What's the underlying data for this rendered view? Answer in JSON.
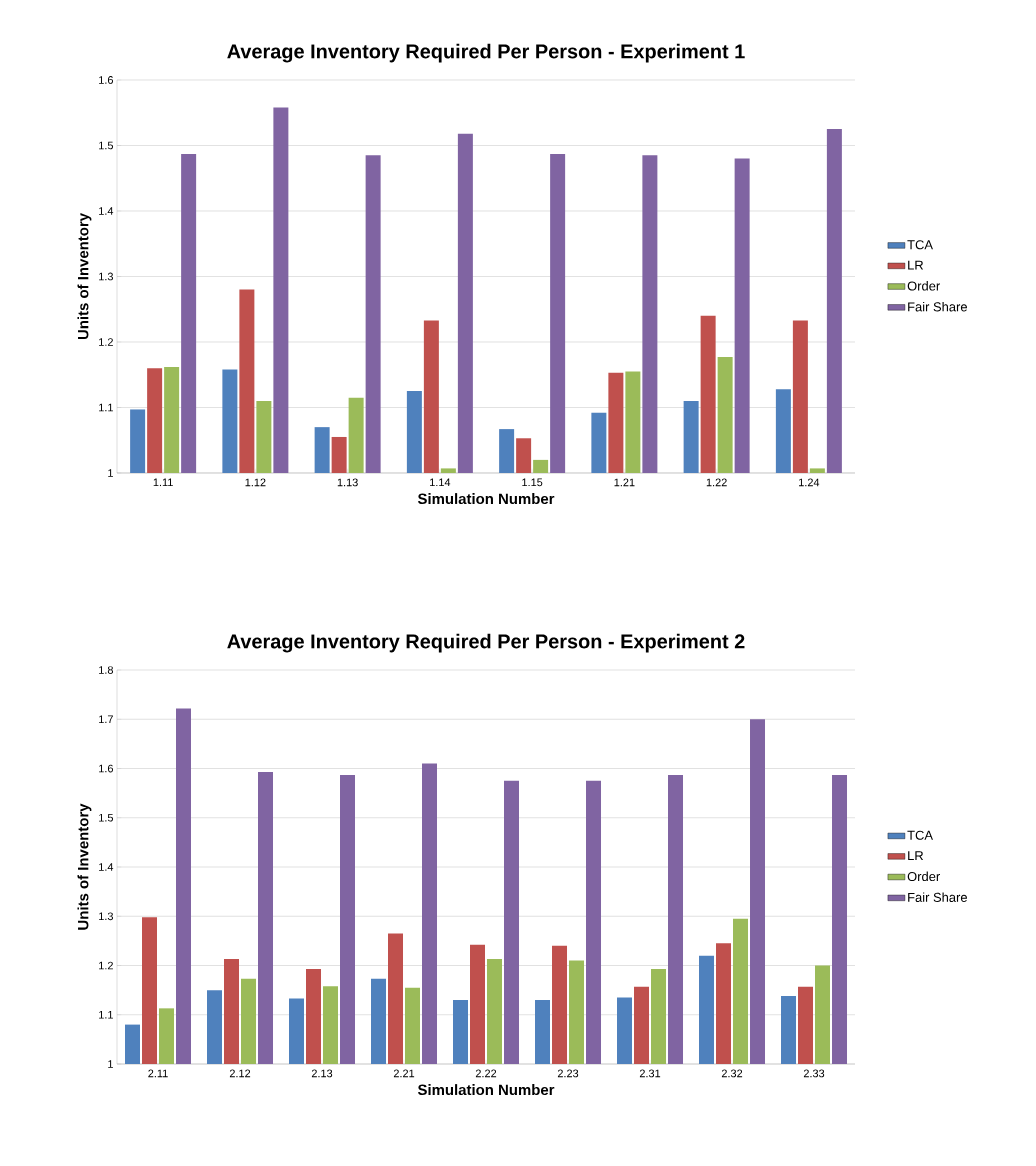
{
  "chart_data": [
    {
      "type": "bar",
      "title": "Average Inventory Required Per Person - Experiment 1",
      "xlabel": "Simulation Number",
      "ylabel": "Units of Inventory",
      "categories": [
        "1.11",
        "1.12",
        "1.13",
        "1.14",
        "1.15",
        "1.21",
        "1.22",
        "1.24"
      ],
      "series": [
        {
          "name": "TCA",
          "color": "#4f81bd",
          "values": [
            1.097,
            1.158,
            1.07,
            1.125,
            1.067,
            1.092,
            1.11,
            1.128
          ]
        },
        {
          "name": "LR",
          "color": "#c0504d",
          "values": [
            1.16,
            1.28,
            1.055,
            1.233,
            1.053,
            1.153,
            1.24,
            1.233
          ]
        },
        {
          "name": "Order",
          "color": "#9bbb59",
          "values": [
            1.162,
            1.11,
            1.115,
            1.007,
            1.02,
            1.155,
            1.177,
            1.007
          ]
        },
        {
          "name": "Fair Share",
          "color": "#8064a2",
          "values": [
            1.487,
            1.558,
            1.485,
            1.518,
            1.487,
            1.485,
            1.48,
            1.525
          ]
        }
      ],
      "ylim": [
        1,
        1.6
      ],
      "yticks": [
        1,
        1.1,
        1.2,
        1.3,
        1.4,
        1.5,
        1.6
      ],
      "grid": "y",
      "legend": "right"
    },
    {
      "type": "bar",
      "title": "Average Inventory Required Per Person - Experiment 2",
      "xlabel": "Simulation Number",
      "ylabel": "Units of Inventory",
      "categories": [
        "2.11",
        "2.12",
        "2.13",
        "2.21",
        "2.22",
        "2.23",
        "2.31",
        "2.32",
        "2.33"
      ],
      "series": [
        {
          "name": "TCA",
          "color": "#4f81bd",
          "values": [
            1.08,
            1.15,
            1.133,
            1.173,
            1.13,
            1.13,
            1.135,
            1.22,
            1.138
          ]
        },
        {
          "name": "LR",
          "color": "#c0504d",
          "values": [
            1.298,
            1.213,
            1.193,
            1.265,
            1.242,
            1.24,
            1.157,
            1.245,
            1.157
          ]
        },
        {
          "name": "Order",
          "color": "#9bbb59",
          "values": [
            1.113,
            1.173,
            1.158,
            1.155,
            1.213,
            1.21,
            1.193,
            1.295,
            1.2
          ]
        },
        {
          "name": "Fair Share",
          "color": "#8064a2",
          "values": [
            1.722,
            1.593,
            1.587,
            1.61,
            1.575,
            1.575,
            1.587,
            1.7,
            1.587
          ]
        }
      ],
      "ylim": [
        1,
        1.8
      ],
      "yticks": [
        1,
        1.1,
        1.2,
        1.3,
        1.4,
        1.5,
        1.6,
        1.7,
        1.8
      ],
      "grid": "y",
      "legend": "right"
    }
  ]
}
